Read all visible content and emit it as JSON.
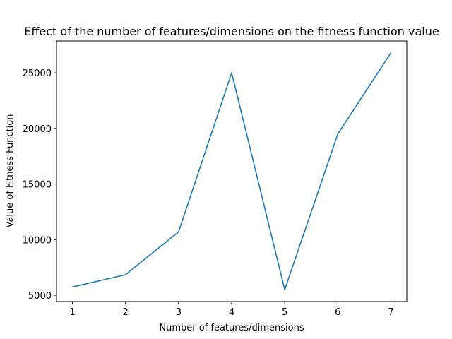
{
  "chart_data": {
    "type": "line",
    "title": "Effect of the number of features/dimensions on the fitness function value",
    "xlabel": "Number of features/dimensions",
    "ylabel": "Value of Fitness Function",
    "x": [
      1,
      2,
      3,
      4,
      5,
      6,
      7
    ],
    "series": [
      {
        "values": [
          5750,
          6850,
          10700,
          25000,
          5500,
          19500,
          26800
        ],
        "color": "#1f77b4"
      }
    ],
    "xticks": [
      "1",
      "2",
      "3",
      "4",
      "5",
      "6",
      "7"
    ],
    "yticks": [
      5000,
      10000,
      15000,
      20000,
      25000
    ],
    "xlim": [
      0.7,
      7.3
    ],
    "ylim": [
      4435,
      27865
    ],
    "grid": false,
    "legend": "none"
  }
}
